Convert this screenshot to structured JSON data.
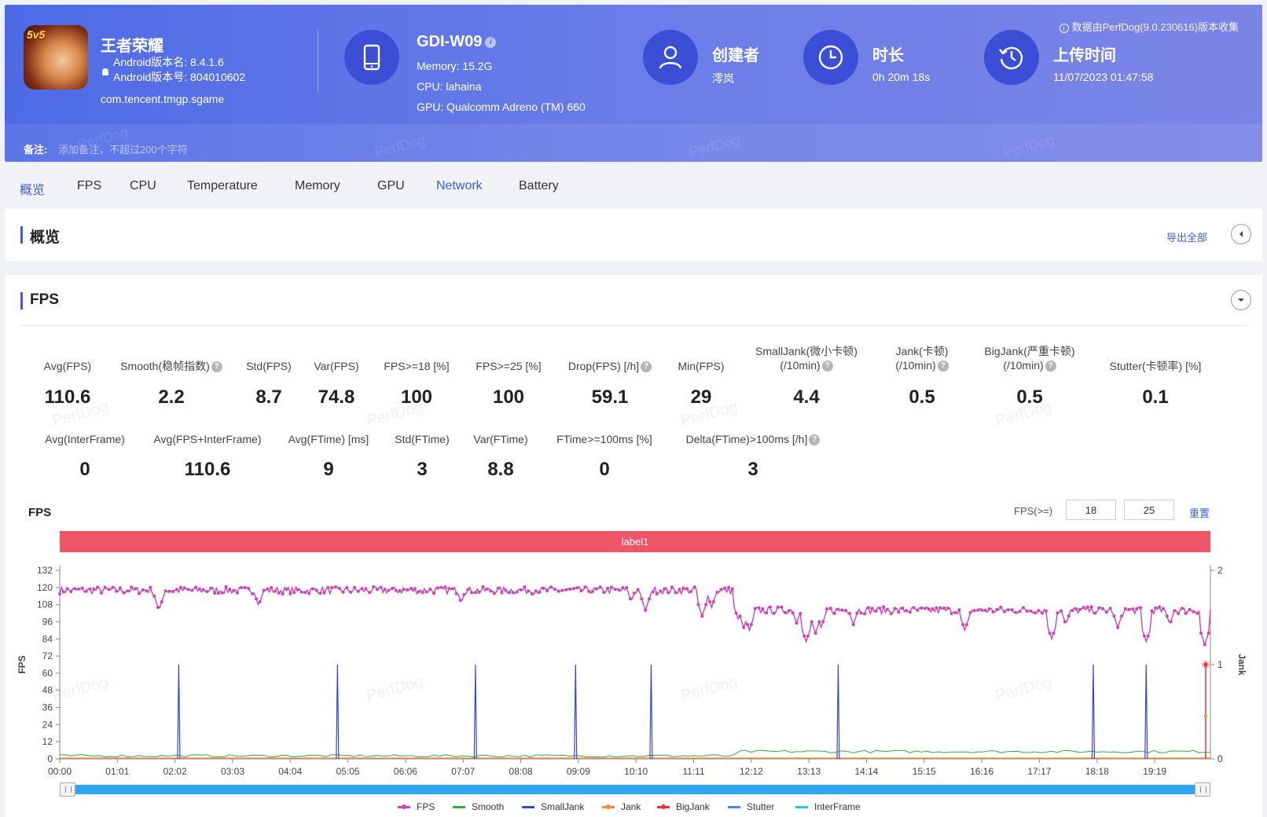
{
  "header": {
    "app_name": "王者荣耀",
    "android_version_name": "Android版本名: 8.4.1.6",
    "android_version_code": "Android版本号: 804010602",
    "package": "com.tencent.tmgp.sgame",
    "device_name": "GDI-W09",
    "memory": "Memory: 15.2G",
    "cpu": "CPU: lahaina",
    "gpu": "GPU: Qualcomm Adreno (TM) 660",
    "creator_label": "创建者",
    "creator_value": "澪岚",
    "duration_label": "时长",
    "duration_value": "0h 20m 18s",
    "upload_label": "上传时间",
    "upload_value": "11/07/2023 01:47:58",
    "data_source": "数据由PerfDog(9.0.230616)版本收集",
    "remark_label": "备注:",
    "remark_placeholder": "添加备注，不超过200个字符",
    "watermark": "PerfDog",
    "app_icon_tag": "5v5"
  },
  "tabs": [
    "概览",
    "FPS",
    "CPU",
    "Temperature",
    "Memory",
    "GPU",
    "Network",
    "Battery"
  ],
  "overview": {
    "title": "概览",
    "export": "导出全部"
  },
  "fps_section": {
    "title": "FPS",
    "row1": [
      {
        "label": "Avg(FPS)",
        "value": "110.6"
      },
      {
        "label": "Smooth(稳帧指数)",
        "value": "2.2"
      },
      {
        "label": "Std(FPS)",
        "value": "8.7"
      },
      {
        "label": "Var(FPS)",
        "value": "74.8"
      },
      {
        "label": "FPS>=18 [%]",
        "value": "100"
      },
      {
        "label": "FPS>=25 [%]",
        "value": "100"
      },
      {
        "label": "Drop(FPS) [/h]",
        "value": "59.1"
      },
      {
        "label": "Min(FPS)",
        "value": "29"
      },
      {
        "label": "SmallJank(微小卡顿)",
        "label2": "(/10min)",
        "value": "4.4"
      },
      {
        "label": "Jank(卡顿)",
        "label2": "(/10min)",
        "value": "0.5"
      },
      {
        "label": "BigJank(严重卡顿)",
        "label2": "(/10min)",
        "value": "0.5"
      },
      {
        "label": "Stutter(卡顿率) [%]",
        "value": "0.1"
      }
    ],
    "row2": [
      {
        "label": "Avg(InterFrame)",
        "value": "0"
      },
      {
        "label": "Avg(FPS+InterFrame)",
        "value": "110.6"
      },
      {
        "label": "Avg(FTime) [ms]",
        "value": "9"
      },
      {
        "label": "Std(FTime)",
        "value": "3"
      },
      {
        "label": "Var(FTime)",
        "value": "8.8"
      },
      {
        "label": "FTime>=100ms [%]",
        "value": "0"
      },
      {
        "label": "Delta(FTime)>100ms [/h]",
        "value": "3"
      }
    ],
    "chart_title": "FPS",
    "fps_ge_label": "FPS(>=)",
    "fps_threshold_1": "18",
    "fps_threshold_2": "25",
    "reset": "重置",
    "label_bar": "label1"
  },
  "chart_data": {
    "type": "line",
    "ylabel": "FPS",
    "y2label": "Jank",
    "ylim": [
      0,
      132
    ],
    "y_ticks": [
      0,
      12,
      24,
      36,
      48,
      60,
      72,
      84,
      96,
      108,
      120,
      132
    ],
    "y2_ticks": [
      0,
      1,
      2
    ],
    "x_ticks": [
      "00:00",
      "01:01",
      "02:02",
      "03:03",
      "04:04",
      "05:05",
      "06:06",
      "07:07",
      "08:08",
      "09:09",
      "10:10",
      "11:11",
      "12:12",
      "13:13",
      "14:14",
      "15:15",
      "16:16",
      "17:17",
      "18:18",
      "19:19"
    ],
    "x_range_seconds": [
      0,
      1218
    ],
    "fps_segments": [
      {
        "start": 0,
        "end": 720,
        "level": 118
      },
      {
        "start": 720,
        "end": 1218,
        "level": 104
      }
    ],
    "fps_dips": [
      {
        "t": 105,
        "v": 104
      },
      {
        "t": 210,
        "v": 108
      },
      {
        "t": 212,
        "v": 110
      },
      {
        "t": 425,
        "v": 109
      },
      {
        "t": 605,
        "v": 110
      },
      {
        "t": 620,
        "v": 104
      },
      {
        "t": 680,
        "v": 100
      },
      {
        "t": 690,
        "v": 106
      },
      {
        "t": 718,
        "v": 98
      },
      {
        "t": 724,
        "v": 92
      },
      {
        "t": 730,
        "v": 90
      },
      {
        "t": 780,
        "v": 95
      },
      {
        "t": 790,
        "v": 82
      },
      {
        "t": 800,
        "v": 88
      },
      {
        "t": 806,
        "v": 92
      },
      {
        "t": 840,
        "v": 94
      },
      {
        "t": 958,
        "v": 90
      },
      {
        "t": 1050,
        "v": 84
      },
      {
        "t": 1065,
        "v": 94
      },
      {
        "t": 1120,
        "v": 92
      },
      {
        "t": 1150,
        "v": 82
      },
      {
        "t": 1175,
        "v": 94
      },
      {
        "t": 1212,
        "v": 80
      }
    ],
    "smalljank_spikes_seconds": [
      126,
      294,
      440,
      546,
      626,
      824,
      1094,
      1150
    ],
    "series": [
      {
        "name": "FPS",
        "color": "#cc44bb"
      },
      {
        "name": "Smooth",
        "color": "#33aa44"
      },
      {
        "name": "SmallJank",
        "color": "#3344dd"
      },
      {
        "name": "Jank",
        "color": "#ff8833"
      },
      {
        "name": "BigJank",
        "color": "#ee3333"
      },
      {
        "name": "Stutter",
        "color": "#4488ee"
      },
      {
        "name": "InterFrame",
        "color": "#22ccdd"
      }
    ]
  }
}
